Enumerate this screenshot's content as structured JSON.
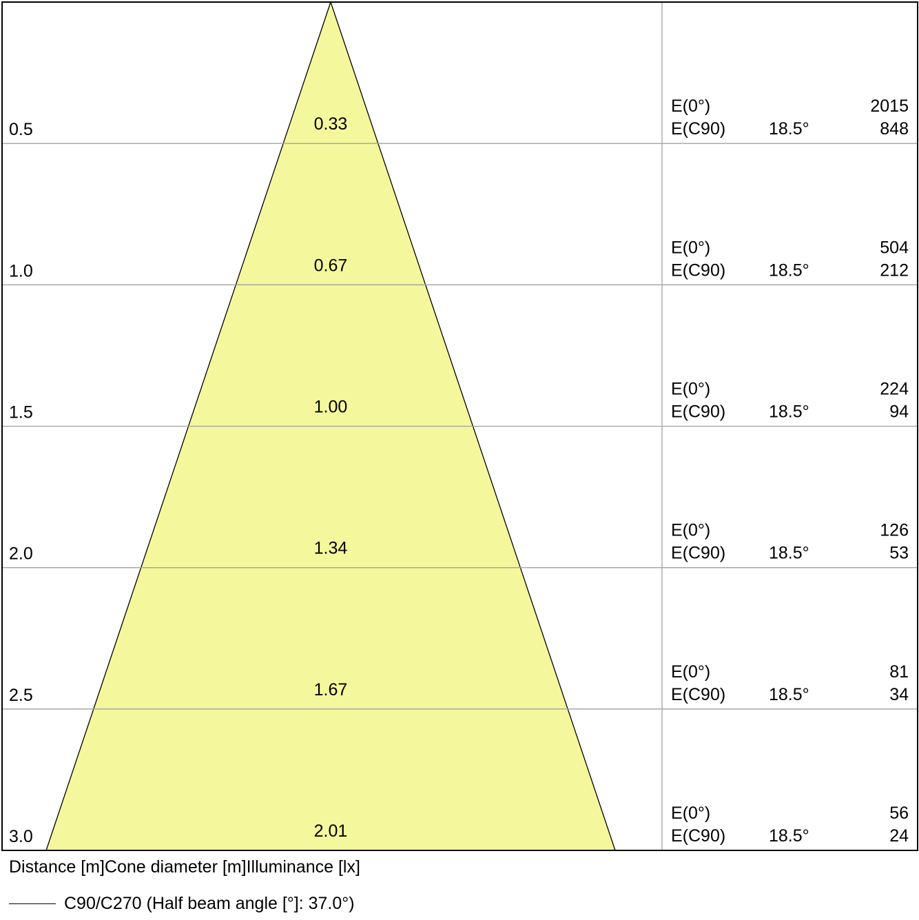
{
  "chart_data": {
    "type": "cone-diagram",
    "max_distance": 3.0,
    "rows": [
      {
        "distance": "0.5",
        "diameter": "0.33",
        "e0_label": "E(0°)",
        "e0_value": "2015",
        "ec90_label": "E(C90)",
        "ec90_angle": "18.5°",
        "ec90_value": "848"
      },
      {
        "distance": "1.0",
        "diameter": "0.67",
        "e0_label": "E(0°)",
        "e0_value": "504",
        "ec90_label": "E(C90)",
        "ec90_angle": "18.5°",
        "ec90_value": "212"
      },
      {
        "distance": "1.5",
        "diameter": "1.00",
        "e0_label": "E(0°)",
        "e0_value": "224",
        "ec90_label": "E(C90)",
        "ec90_angle": "18.5°",
        "ec90_value": "94"
      },
      {
        "distance": "2.0",
        "diameter": "1.34",
        "e0_label": "E(0°)",
        "e0_value": "126",
        "ec90_label": "E(C90)",
        "ec90_angle": "18.5°",
        "ec90_value": "53"
      },
      {
        "distance": "2.5",
        "diameter": "1.67",
        "e0_label": "E(0°)",
        "e0_value": "81",
        "ec90_label": "E(C90)",
        "ec90_angle": "18.5°",
        "ec90_value": "34"
      },
      {
        "distance": "3.0",
        "diameter": "2.01",
        "e0_label": "E(0°)",
        "e0_value": "56",
        "ec90_label": "E(C90)",
        "ec90_angle": "18.5°",
        "ec90_value": "24"
      }
    ],
    "colors": {
      "cone_fill": "#f4f79c",
      "cone_stroke": "#000000",
      "grid": "#a0a0a0",
      "frame": "#000000"
    }
  },
  "captions": {
    "columns": "Distance [m]Cone diameter [m]Illuminance [lx]",
    "legend": "C90/C270 (Half beam angle [°]: 37.0°)"
  }
}
